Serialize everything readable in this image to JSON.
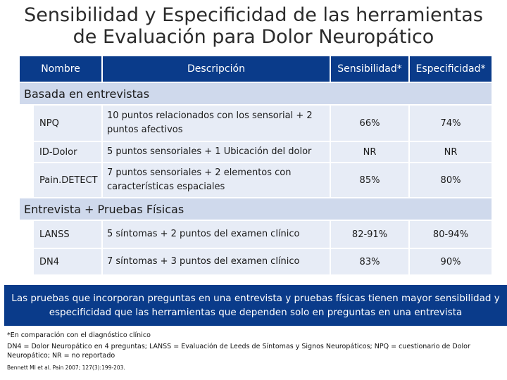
{
  "title": {
    "line1": "Sensibilidad y Especificidad de las herramientas",
    "line2": "de Evaluación para Dolor Neuropático"
  },
  "header": {
    "name": "Nombre",
    "description": "Descripción",
    "sensitivity": "Sensibilidad*",
    "specificity": "Especificidad*"
  },
  "sections": [
    {
      "label": "Basada en entrevistas",
      "rows": [
        {
          "name": "NPQ",
          "description": "10 puntos relacionados con los sensorial + 2 puntos afectivos",
          "sensitivity": "66%",
          "specificity": "74%"
        },
        {
          "name": "ID-Dolor",
          "description": "5 puntos sensoriales + 1 Ubicación del dolor",
          "sensitivity": "NR",
          "specificity": "NR"
        },
        {
          "name": "Pain.DETECT",
          "description": "7 puntos sensoriales + 2 elementos con características espaciales",
          "sensitivity": "85%",
          "specificity": "80%"
        }
      ]
    },
    {
      "label": "Entrevista + Pruebas Físicas",
      "rows": [
        {
          "name": "LANSS",
          "description": "5 síntomas + 2 puntos del examen clínico",
          "sensitivity": "82-91%",
          "specificity": "80-94%"
        },
        {
          "name": "DN4",
          "description": "7 síntomas + 3 puntos del examen clínico",
          "sensitivity": "83%",
          "specificity": "90%"
        }
      ]
    }
  ],
  "highlight": {
    "line1": "Las pruebas que incorporan preguntas en una entrevista y pruebas físicas tienen mayor sensibilidad y",
    "line2": "especificidad que las herramientas que dependen solo en preguntas en una entrevista"
  },
  "footnotes": {
    "note1": "*En comparación con el diagnóstico clínico",
    "note2": "DN4 = Dolor Neuropático en 4 preguntas; LANSS = Evaluación de Leeds de Síntomas y Signos Neuropáticos; NPQ = cuestionario de Dolor Neuropático; NR = no reportado",
    "reference": "Bennett MI et al. Pain 2007; 127(3):199-203."
  },
  "colors": {
    "header_bg": "#0a3b8a",
    "section_bg": "#cfd9ec",
    "cell_bg": "#e7ecf6"
  }
}
